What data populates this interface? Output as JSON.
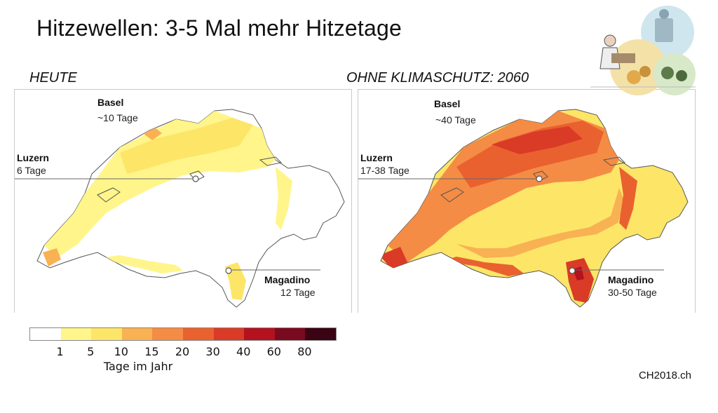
{
  "title": "Hitzewellen: 3-5 Mal mehr Hitzetage",
  "panels": [
    {
      "heading": "HEUTE",
      "scenario": "today",
      "cities": {
        "basel": {
          "name": "Basel",
          "value": "~10 Tage"
        },
        "luzern": {
          "name": "Luzern",
          "value": "6 Tage"
        },
        "magadino": {
          "name": "Magadino",
          "value": "12 Tage"
        }
      }
    },
    {
      "heading": "OHNE KLIMASCHUTZ: 2060",
      "scenario": "2060",
      "cities": {
        "basel": {
          "name": "Basel",
          "value": "~40 Tage"
        },
        "luzern": {
          "name": "Luzern",
          "value": "17-38 Tage"
        },
        "magadino": {
          "name": "Magadino",
          "value": "30-50 Tage"
        }
      }
    }
  ],
  "legend": {
    "colors": [
      "#ffffff",
      "#fff58a",
      "#fde568",
      "#f8b153",
      "#f48c45",
      "#ea6130",
      "#d93b27",
      "#b3121e",
      "#7a0a1f",
      "#3a0414"
    ],
    "ticks": [
      "1",
      "5",
      "10",
      "15",
      "20",
      "30",
      "40",
      "60",
      "80"
    ],
    "unit": "Tage im Jahr"
  },
  "source": "CH2018.ch",
  "illustration_icon": "people-weather-collage-icon"
}
